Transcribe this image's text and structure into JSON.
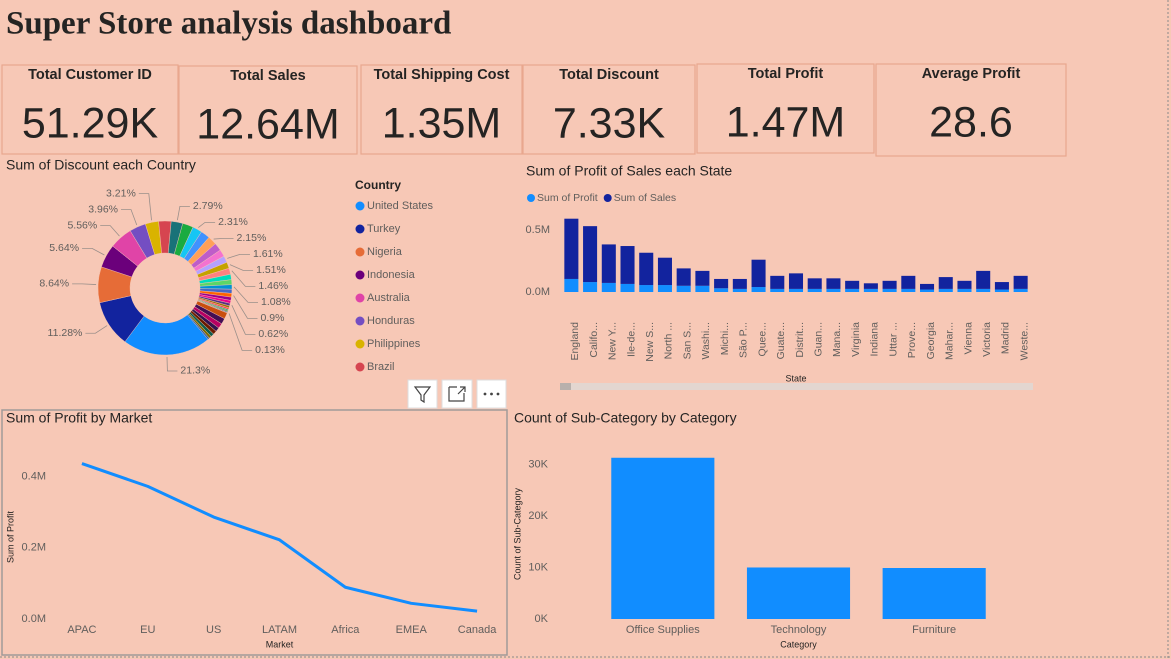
{
  "title": "Super Store analysis dashboard",
  "cards": [
    {
      "label": "Total Customer ID",
      "value": "51.29K"
    },
    {
      "label": "Total Sales",
      "value": "12.64M"
    },
    {
      "label": "Total Shipping Cost",
      "value": "1.35M"
    },
    {
      "label": "Total Discount",
      "value": "7.33K"
    },
    {
      "label": "Total Profit",
      "value": "1.47M"
    },
    {
      "label": "Average Profit",
      "value": "28.6"
    }
  ],
  "chart_data": [
    {
      "type": "pie",
      "title": "Sum of Discount each Country",
      "legend_title": "Country",
      "categories": [
        "United States",
        "Turkey",
        "Nigeria",
        "Indonesia",
        "Australia",
        "Honduras",
        "Philippines",
        "Brazil",
        null,
        null,
        null,
        null,
        null,
        null,
        null,
        null,
        null,
        null,
        null,
        null,
        null,
        null,
        null,
        null,
        null,
        null,
        null,
        null,
        null,
        null,
        null,
        null,
        null,
        null,
        null,
        null,
        null,
        null,
        null,
        null
      ],
      "values": [
        21.3,
        11.28,
        8.64,
        5.64,
        5.56,
        3.96,
        3.21,
        3.0,
        2.79,
        2.6,
        2.31,
        2.2,
        2.15,
        1.9,
        1.7,
        1.61,
        1.51,
        1.46,
        1.3,
        1.2,
        1.08,
        1.0,
        0.9,
        0.8,
        0.7,
        0.62,
        0.5,
        0.4,
        0.3,
        0.25,
        0.2,
        0.13,
        1.5,
        1.4,
        1.2,
        1.0,
        0.9,
        0.8,
        0.6,
        0.4
      ],
      "value_labels": [
        "21.3%",
        "11.28%",
        "8.64%",
        "5.64%",
        "5.56%",
        "3.96%",
        "3.21%",
        null,
        "2.79%",
        null,
        "2.31%",
        null,
        "2.15%",
        null,
        null,
        "1.61%",
        "1.51%",
        "1.46%",
        null,
        null,
        "1.08%",
        null,
        "0.9%",
        null,
        null,
        "0.62%",
        null,
        null,
        null,
        null,
        null,
        "0.13%",
        null,
        null,
        null,
        null,
        null,
        null,
        null,
        null
      ],
      "colors": [
        "#118DFF",
        "#12239E",
        "#E66C37",
        "#6B007B",
        "#E044A7",
        "#744EC2",
        "#D9B300",
        "#D64550",
        "#197278",
        "#1AAB40",
        "#15C6F4",
        "#4092FF",
        "#FFA058",
        "#BE5DC9",
        "#F472D0",
        "#B5A1FF",
        "#C4A200",
        "#FF8080",
        "#00DBBC",
        "#5BD667",
        "#0091D5",
        "#4668C5",
        "#FF6300",
        "#99008A",
        "#EC008C",
        "#533285",
        "#99700A",
        "#FF4141",
        "#1F9A85",
        "#25891C",
        "#0057A2",
        "#002050",
        "#C94F0F",
        "#450F54",
        "#B60064",
        "#34124F",
        "#6A1B00",
        "#0F5C4D",
        "#7A6A00",
        "#2E5EA8"
      ]
    },
    {
      "type": "bar",
      "stacked": true,
      "title": "Sum of Profit of Sales each State",
      "xlabel": "State",
      "categories": [
        "England",
        "Califo...",
        "New Y...",
        "Ile-de...",
        "New S...",
        "North ...",
        "San S...",
        "Washi...",
        "Michi...",
        "São P...",
        "Quee...",
        "Guate...",
        "Distrit...",
        "Guan...",
        "Mana...",
        "Virginia",
        "Indiana",
        "Uttar ...",
        "Prove...",
        "Georgia",
        "Mahar...",
        "Vienna",
        "Victoria",
        "Madrid",
        "Weste..."
      ],
      "series": [
        {
          "name": "Sum of Profit",
          "color": "#118DFF",
          "values": [
            105000,
            80000,
            73000,
            65000,
            56000,
            56000,
            50000,
            50000,
            30000,
            25000,
            40000,
            25000,
            25000,
            25000,
            25000,
            25000,
            25000,
            25000,
            25000,
            20000,
            25000,
            25000,
            25000,
            20000,
            25000
          ]
        },
        {
          "name": "Sum of Sales",
          "color": "#12239E",
          "values": [
            485000,
            450000,
            310000,
            305000,
            260000,
            220000,
            140000,
            120000,
            75000,
            80000,
            220000,
            105000,
            125000,
            85000,
            85000,
            65000,
            45000,
            65000,
            105000,
            45000,
            95000,
            65000,
            145000,
            60000,
            105000
          ]
        }
      ],
      "ylim": [
        0,
        660000
      ],
      "yticks": [
        {
          "value": 0,
          "label": "0.0M"
        },
        {
          "value": 500000,
          "label": "0.5M"
        }
      ]
    },
    {
      "type": "line",
      "title": "Sum of Profit by Market",
      "xlabel": "Market",
      "ylabel": "Sum of Profit",
      "color": "#118DFF",
      "categories": [
        "APAC",
        "EU",
        "US",
        "LATAM",
        "Africa",
        "EMEA",
        "Canada"
      ],
      "values": [
        436000,
        372000,
        286000,
        222000,
        89000,
        44000,
        22000
      ],
      "ylim": [
        0,
        460000
      ],
      "yticks": [
        {
          "value": 0,
          "label": "0.0M"
        },
        {
          "value": 200000,
          "label": "0.2M"
        },
        {
          "value": 400000,
          "label": "0.4M"
        }
      ]
    },
    {
      "type": "bar",
      "title": "Count of Sub-Category by Category",
      "xlabel": "Category",
      "ylabel": "Count of Sub-Category",
      "color": "#118DFF",
      "categories": [
        "Office Supplies",
        "Technology",
        "Furniture"
      ],
      "values": [
        31300,
        10000,
        9900
      ],
      "ylim": [
        0,
        33000
      ],
      "yticks": [
        {
          "value": 0,
          "label": "0K"
        },
        {
          "value": 10000,
          "label": "10K"
        },
        {
          "value": 20000,
          "label": "20K"
        },
        {
          "value": 30000,
          "label": "30K"
        }
      ]
    }
  ]
}
